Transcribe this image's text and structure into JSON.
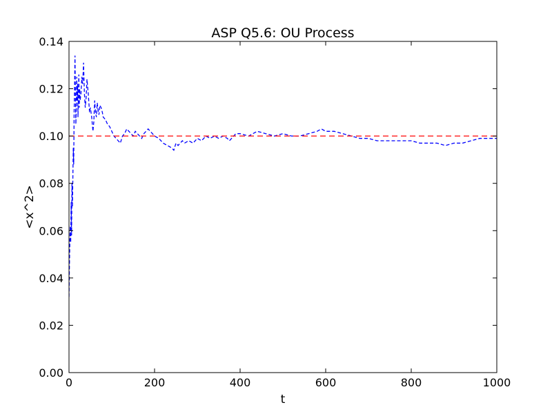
{
  "chart_data": {
    "type": "line",
    "title": "ASP Q5.6: OU Process",
    "xlabel": "t",
    "ylabel": "<x^2>",
    "xlim": [
      0,
      1000
    ],
    "ylim": [
      0.0,
      0.14
    ],
    "xticks": [
      0,
      200,
      400,
      600,
      800,
      1000
    ],
    "xtick_labels": [
      "0",
      "200",
      "400",
      "600",
      "800",
      "1000"
    ],
    "yticks": [
      0.0,
      0.02,
      0.04,
      0.06,
      0.08,
      0.1,
      0.12,
      0.14
    ],
    "ytick_labels": [
      "0.00",
      "0.02",
      "0.04",
      "0.06",
      "0.08",
      "0.10",
      "0.12",
      "0.14"
    ],
    "grid": false,
    "legend": null,
    "series": [
      {
        "style": "dashed",
        "color": "#0000ff",
        "x": [
          0,
          1,
          2,
          3,
          4,
          5,
          6,
          7,
          8,
          9,
          10,
          11,
          12,
          13,
          14,
          15,
          16,
          17,
          18,
          19,
          20,
          21,
          22,
          23,
          24,
          25,
          26,
          28,
          30,
          32,
          34,
          36,
          38,
          40,
          42,
          45,
          48,
          50,
          53,
          56,
          58,
          60,
          62,
          64,
          66,
          68,
          70,
          72,
          75,
          78,
          80,
          85,
          90,
          95,
          100,
          105,
          110,
          115,
          120,
          125,
          130,
          135,
          140,
          145,
          150,
          155,
          160,
          165,
          170,
          175,
          180,
          185,
          190,
          195,
          200,
          210,
          220,
          230,
          240,
          245,
          250,
          255,
          260,
          265,
          270,
          280,
          290,
          300,
          310,
          320,
          330,
          340,
          350,
          360,
          370,
          375,
          380,
          390,
          400,
          420,
          440,
          460,
          480,
          500,
          520,
          540,
          560,
          580,
          590,
          600,
          620,
          640,
          660,
          680,
          700,
          720,
          740,
          760,
          780,
          800,
          820,
          840,
          860,
          880,
          900,
          920,
          940,
          960,
          980,
          1000
        ],
        "y": [
          0.032,
          0.045,
          0.056,
          0.062,
          0.055,
          0.072,
          0.058,
          0.08,
          0.07,
          0.082,
          0.095,
          0.088,
          0.11,
          0.12,
          0.134,
          0.118,
          0.105,
          0.112,
          0.125,
          0.115,
          0.122,
          0.108,
          0.118,
          0.126,
          0.112,
          0.12,
          0.115,
          0.118,
          0.125,
          0.122,
          0.131,
          0.118,
          0.112,
          0.116,
          0.124,
          0.118,
          0.11,
          0.112,
          0.108,
          0.102,
          0.106,
          0.115,
          0.11,
          0.108,
          0.114,
          0.111,
          0.109,
          0.113,
          0.112,
          0.11,
          0.108,
          0.107,
          0.105,
          0.104,
          0.102,
          0.1,
          0.099,
          0.098,
          0.097,
          0.1,
          0.101,
          0.103,
          0.102,
          0.101,
          0.1,
          0.102,
          0.101,
          0.1,
          0.099,
          0.101,
          0.102,
          0.103,
          0.102,
          0.101,
          0.1,
          0.099,
          0.097,
          0.096,
          0.095,
          0.094,
          0.097,
          0.096,
          0.097,
          0.098,
          0.097,
          0.098,
          0.097,
          0.099,
          0.098,
          0.1,
          0.099,
          0.1,
          0.099,
          0.1,
          0.099,
          0.098,
          0.099,
          0.101,
          0.101,
          0.1,
          0.102,
          0.101,
          0.1,
          0.101,
          0.1,
          0.1,
          0.101,
          0.102,
          0.103,
          0.102,
          0.102,
          0.101,
          0.1,
          0.099,
          0.099,
          0.098,
          0.098,
          0.098,
          0.098,
          0.098,
          0.097,
          0.097,
          0.097,
          0.096,
          0.097,
          0.097,
          0.098,
          0.099,
          0.099,
          0.099
        ]
      },
      {
        "style": "dashed",
        "color": "#ff0000",
        "x": [
          0,
          1000
        ],
        "y": [
          0.1,
          0.1
        ]
      }
    ]
  }
}
